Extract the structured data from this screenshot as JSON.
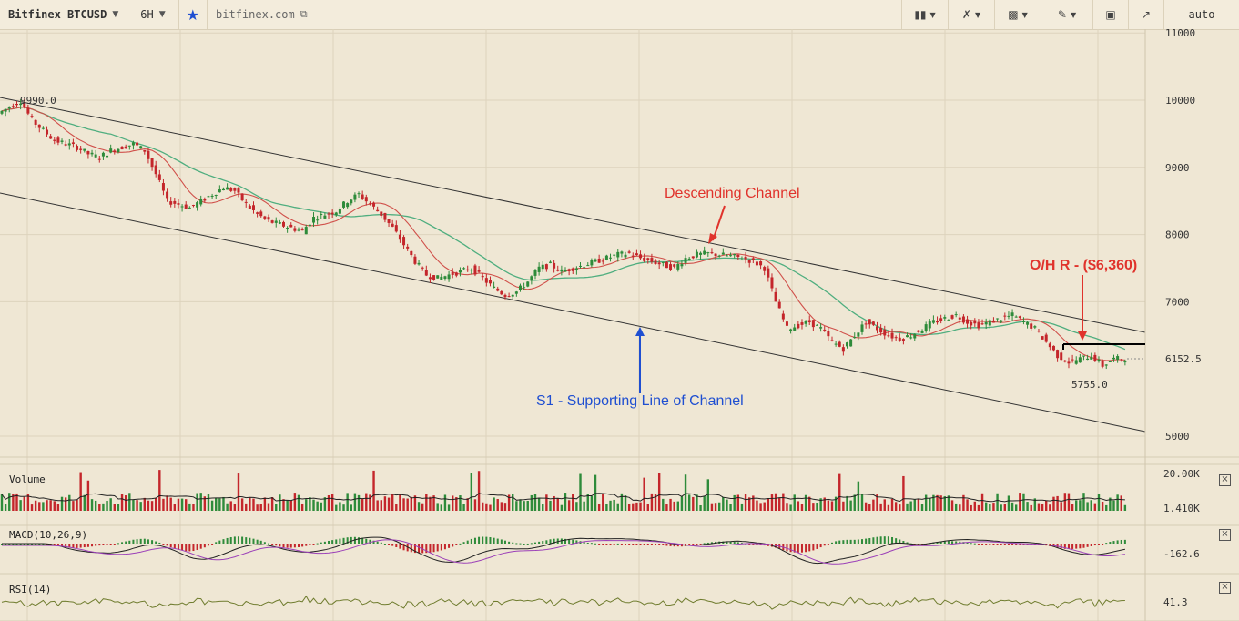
{
  "toolbar": {
    "symbol": "Bitfinex BTCUSD",
    "interval": "6H",
    "site": "bitfinex.com",
    "scale_mode": "auto"
  },
  "chart_data": {
    "type": "candlestick",
    "y_ticks": [
      "11000",
      "10000",
      "9000",
      "8000",
      "7000",
      "6152.5",
      "5000"
    ],
    "ylim": [
      4700,
      11100
    ],
    "annotations": {
      "high_label": "9990.0",
      "low_label": "5755.0",
      "current_price": "6152.5",
      "descending_channel": "Descending Channel",
      "resistance": "O/H R - ($6,360)",
      "support": "S1 - Supporting Line of Channel"
    },
    "close_path": [
      9800,
      9900,
      9990,
      9700,
      9550,
      9400,
      9350,
      9300,
      9200,
      9150,
      9250,
      9300,
      9350,
      9250,
      8900,
      8500,
      8450,
      8400,
      8500,
      8600,
      8700,
      8650,
      8450,
      8300,
      8200,
      8150,
      8100,
      8050,
      8250,
      8300,
      8350,
      8500,
      8600,
      8450,
      8300,
      8100,
      7850,
      7600,
      7400,
      7350,
      7400,
      7450,
      7500,
      7350,
      7200,
      7100,
      7150,
      7300,
      7500,
      7550,
      7450,
      7500,
      7550,
      7600,
      7650,
      7700,
      7720,
      7650,
      7600,
      7550,
      7500,
      7650,
      7700,
      7720,
      7700,
      7680,
      7650,
      7600,
      7500,
      7000,
      6600,
      6650,
      6700,
      6600,
      6400,
      6300,
      6500,
      6700,
      6600,
      6500,
      6450,
      6500,
      6600,
      6700,
      6750,
      6800,
      6700,
      6650,
      6700,
      6750,
      6800,
      6700,
      6600,
      6400,
      6200,
      6100,
      6150,
      6200,
      6050,
      6150,
      6152.5
    ],
    "volume": {
      "label": "Volume",
      "value_top": "20.00K",
      "value_current": "1.410K"
    },
    "macd": {
      "label": "MACD(10,26,9)",
      "value": "-162.6"
    },
    "rsi": {
      "label": "RSI(14)",
      "value": "41.3"
    }
  },
  "colors": {
    "background": "#efe7d4",
    "up_candle": "#2e8b3a",
    "down_candle": "#c4262b",
    "ma_fast": "#d0504a",
    "ma_slow": "#4fae7f",
    "annotation_red": "#e0332c",
    "annotation_blue": "#1f4fd1"
  },
  "icons": [
    "chevron-down-icon",
    "star-icon",
    "popout-icon",
    "bar-style-icon",
    "indicator-icon",
    "chart-type-icon",
    "draw-icon",
    "screenshot-icon",
    "fullscreen-icon",
    "close-icon"
  ]
}
